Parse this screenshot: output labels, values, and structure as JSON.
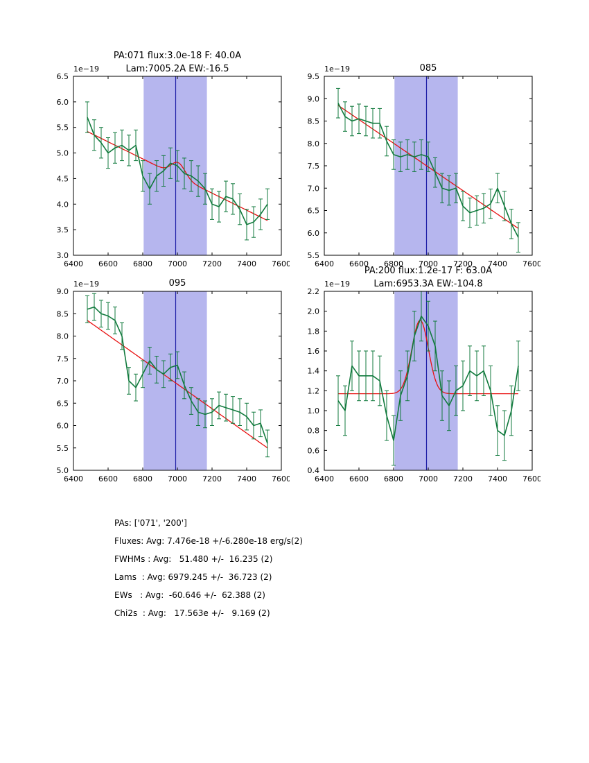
{
  "colors": {
    "data_line": "#117a3d",
    "fit_line": "#e81010",
    "band_fill": "#b6b6ee",
    "vline": "#2020a8",
    "frame": "#000000",
    "text": "#000000"
  },
  "chart_data": [
    {
      "type": "line",
      "name": "plot-pa071",
      "title_lines": [
        "PA:071 flux:3.0e-18 F: 40.0A",
        "Lam:7005.2A EW:-16.5"
      ],
      "offset_label": "1e−19",
      "xlim": [
        6400,
        7600
      ],
      "ylim": [
        3.0,
        6.5
      ],
      "xticks": [
        6400,
        6600,
        6800,
        7000,
        7200,
        7400,
        7600
      ],
      "yticks": [
        3.0,
        3.5,
        4.0,
        4.5,
        5.0,
        5.5,
        6.0,
        6.5
      ],
      "band": [
        6805,
        7170
      ],
      "vline": 6990,
      "x": [
        6480,
        6520,
        6560,
        6600,
        6640,
        6680,
        6720,
        6760,
        6800,
        6840,
        6880,
        6920,
        6960,
        7000,
        7040,
        7080,
        7120,
        7160,
        7200,
        7240,
        7280,
        7320,
        7360,
        7400,
        7440,
        7480,
        7520
      ],
      "y": [
        5.7,
        5.35,
        5.2,
        5.0,
        5.1,
        5.15,
        5.05,
        5.15,
        4.55,
        4.3,
        4.55,
        4.65,
        4.8,
        4.75,
        4.6,
        4.55,
        4.45,
        4.3,
        4.0,
        3.95,
        4.15,
        4.1,
        3.9,
        3.6,
        3.65,
        3.8,
        4.0
      ],
      "yerr": 0.3,
      "fit": {
        "x0": 6480,
        "y0": 5.42,
        "x1": 7520,
        "y1": 3.68,
        "gauss": {
          "center": 7005.2,
          "amp": 0.27,
          "sigma": 40
        }
      }
    },
    {
      "type": "line",
      "name": "plot-085",
      "title_lines": [
        "085"
      ],
      "offset_label": "1e−19",
      "xlim": [
        6400,
        7600
      ],
      "ylim": [
        5.5,
        9.5
      ],
      "xticks": [
        6400,
        6600,
        6800,
        7000,
        7200,
        7400,
        7600
      ],
      "yticks": [
        5.5,
        6.0,
        6.5,
        7.0,
        7.5,
        8.0,
        8.5,
        9.0,
        9.5
      ],
      "band": [
        6805,
        7170
      ],
      "vline": 6990,
      "x": [
        6480,
        6520,
        6560,
        6600,
        6640,
        6680,
        6720,
        6760,
        6800,
        6840,
        6880,
        6920,
        6960,
        7000,
        7040,
        7080,
        7120,
        7160,
        7200,
        7240,
        7280,
        7320,
        7360,
        7400,
        7440,
        7480,
        7520
      ],
      "y": [
        8.9,
        8.6,
        8.5,
        8.55,
        8.5,
        8.45,
        8.45,
        8.05,
        7.75,
        7.7,
        7.75,
        7.7,
        7.75,
        7.7,
        7.35,
        7.0,
        6.95,
        7.0,
        6.6,
        6.45,
        6.5,
        6.55,
        6.65,
        7.0,
        6.6,
        6.2,
        5.9
      ],
      "yerr": 0.33,
      "fit": {
        "x0": 6480,
        "y0": 8.85,
        "x1": 7520,
        "y1": 6.1,
        "gauss": null
      }
    },
    {
      "type": "line",
      "name": "plot-095",
      "title_lines": [
        "095"
      ],
      "offset_label": "1e−19",
      "xlim": [
        6400,
        7600
      ],
      "ylim": [
        5.0,
        9.0
      ],
      "xticks": [
        6400,
        6600,
        6800,
        7000,
        7200,
        7400,
        7600
      ],
      "yticks": [
        5.0,
        5.5,
        6.0,
        6.5,
        7.0,
        7.5,
        8.0,
        8.5,
        9.0
      ],
      "band": [
        6805,
        7170
      ],
      "vline": 6990,
      "x": [
        6480,
        6520,
        6560,
        6600,
        6640,
        6680,
        6720,
        6760,
        6800,
        6840,
        6880,
        6920,
        6960,
        7000,
        7040,
        7080,
        7120,
        7160,
        7200,
        7240,
        7280,
        7320,
        7360,
        7400,
        7440,
        7480,
        7520
      ],
      "y": [
        8.6,
        8.65,
        8.5,
        8.45,
        8.35,
        8.0,
        7.0,
        6.85,
        7.15,
        7.45,
        7.25,
        7.15,
        7.3,
        7.35,
        6.9,
        6.55,
        6.3,
        6.25,
        6.3,
        6.45,
        6.4,
        6.35,
        6.3,
        6.2,
        6.0,
        6.05,
        5.6
      ],
      "yerr": 0.3,
      "fit": {
        "x0": 6480,
        "y0": 8.35,
        "x1": 7520,
        "y1": 5.5,
        "gauss": null
      }
    },
    {
      "type": "line",
      "name": "plot-pa200",
      "title_lines": [
        "PA:200 flux:1.2e-17 F: 63.0A",
        "Lam:6953.3A EW:-104.8"
      ],
      "offset_label": "1e−19",
      "xlim": [
        6400,
        7600
      ],
      "ylim": [
        0.4,
        2.2
      ],
      "xticks": [
        6400,
        6600,
        6800,
        7000,
        7200,
        7400,
        7600
      ],
      "yticks": [
        0.4,
        0.6,
        0.8,
        1.0,
        1.2,
        1.4,
        1.6,
        1.8,
        2.0,
        2.2
      ],
      "band": [
        6805,
        7170
      ],
      "vline": 6990,
      "x": [
        6480,
        6520,
        6560,
        6600,
        6640,
        6680,
        6720,
        6760,
        6800,
        6840,
        6880,
        6920,
        6960,
        7000,
        7040,
        7080,
        7120,
        7160,
        7200,
        7240,
        7280,
        7320,
        7360,
        7400,
        7440,
        7480,
        7520
      ],
      "y": [
        1.1,
        1.0,
        1.45,
        1.35,
        1.35,
        1.35,
        1.3,
        0.95,
        0.7,
        1.15,
        1.35,
        1.75,
        1.95,
        1.85,
        1.65,
        1.15,
        1.05,
        1.2,
        1.25,
        1.4,
        1.35,
        1.4,
        1.2,
        0.8,
        0.75,
        1.0,
        1.45
      ],
      "yerr": 0.25,
      "fit": {
        "x0": 6480,
        "y0": 1.17,
        "x1": 7520,
        "y1": 1.17,
        "gauss": {
          "center": 6953.3,
          "amp": 0.74,
          "sigma": 48
        }
      }
    }
  ],
  "summary": {
    "lines": [
      "PAs: ['071', '200']",
      "Fluxes: Avg: 7.476e-18 +/-6.280e-18 erg/s(2)",
      "FWHMs : Avg:   51.480 +/-  16.235 (2)",
      "Lams  : Avg: 6979.245 +/-  36.723 (2)",
      "EWs   : Avg:  -60.646 +/-  62.388 (2)",
      "Chi2s  : Avg:   17.563e +/-   9.169 (2)"
    ]
  }
}
